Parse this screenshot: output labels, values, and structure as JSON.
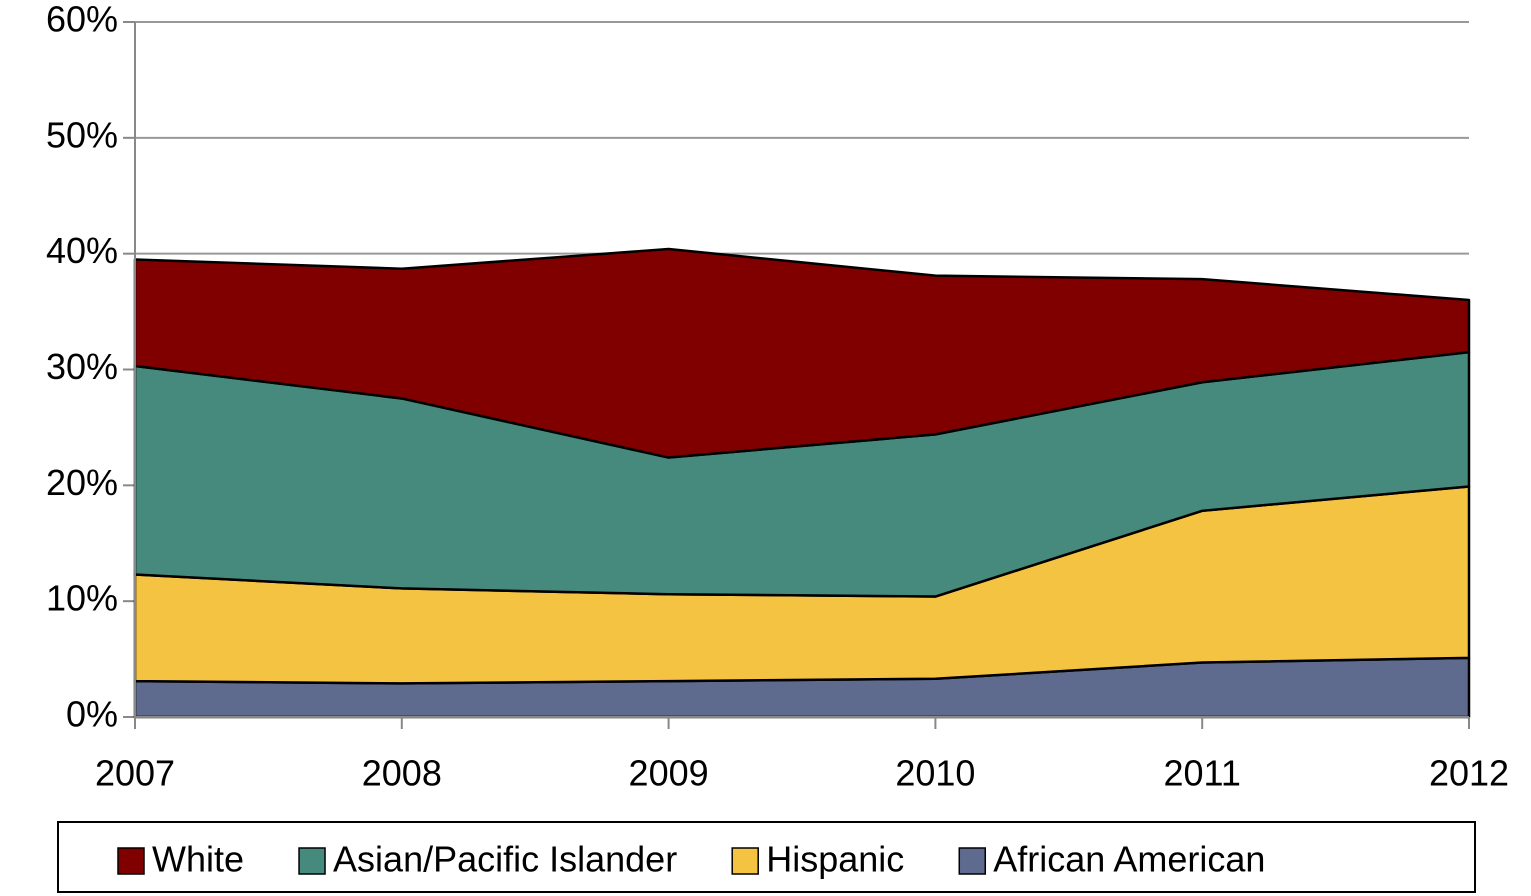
{
  "chart_data": {
    "type": "stacked_area",
    "categories": [
      "2007",
      "2008",
      "2009",
      "2010",
      "2011",
      "2012"
    ],
    "series": [
      {
        "name": "White",
        "color": "#800000",
        "values": [
          9.2,
          11.2,
          18.0,
          13.7,
          8.9,
          4.5
        ]
      },
      {
        "name": "Asian/Pacific Islander",
        "color": "#468a7e",
        "values": [
          18.0,
          16.4,
          11.8,
          14.0,
          11.1,
          11.6
        ]
      },
      {
        "name": "Hispanic",
        "color": "#f5c342",
        "values": [
          9.2,
          8.2,
          7.5,
          7.1,
          13.1,
          14.8
        ]
      },
      {
        "name": "African American",
        "color": "#5f6a8f",
        "values": [
          3.1,
          2.9,
          3.1,
          3.3,
          4.7,
          5.1
        ]
      }
    ],
    "ylim": [
      0,
      60
    ],
    "yticks": [
      {
        "value": 0,
        "label": "0%"
      },
      {
        "value": 10,
        "label": "10%"
      },
      {
        "value": 20,
        "label": "20%"
      },
      {
        "value": 30,
        "label": "30%"
      },
      {
        "value": 40,
        "label": "40%"
      },
      {
        "value": 50,
        "label": "50%"
      },
      {
        "value": 60,
        "label": "60%"
      }
    ],
    "grid": true,
    "legend": "bottom"
  }
}
